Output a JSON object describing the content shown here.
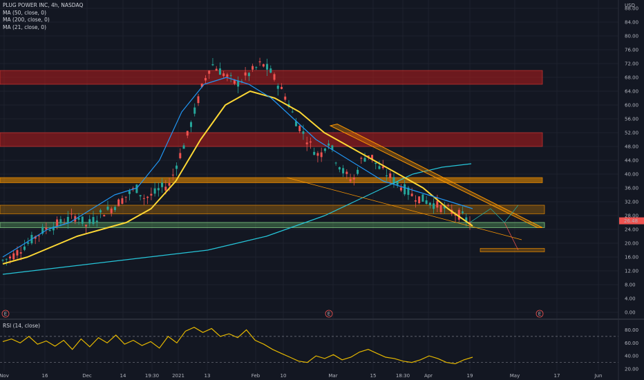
{
  "legend": {
    "symbol": "PLUG POWER INC, 4h, NASDAQ",
    "ma1": "MA (50, close, 0)",
    "ma2": "MA (200, close, 0)",
    "ma3": "MA (21, close, 0)",
    "rsi": "RSI (14, close)"
  },
  "currency": "USD",
  "last_price": "26.48",
  "earnings_marker": "E",
  "colors": {
    "background": "#131722",
    "up_candle": "#26a69a",
    "down_candle": "#ef5350",
    "ma50": "#2196f3",
    "ma200": "#26c6da",
    "ma21": "#fdd835",
    "rsi": "#e6b800",
    "resistance_zone": "#b71c1c",
    "orange_zone": "#e68a00",
    "support_zone": "#66bb6a"
  },
  "chart_data": {
    "type": "candlestick",
    "symbol": "PLUG",
    "interval": "4h",
    "exchange": "NASDAQ",
    "price_ticks": [
      "88.00",
      "84.00",
      "80.00",
      "76.00",
      "72.00",
      "68.00",
      "64.00",
      "60.00",
      "56.00",
      "52.00",
      "48.00",
      "44.00",
      "40.00",
      "36.00",
      "32.00",
      "28.00",
      "24.00",
      "20.00",
      "16.00",
      "12.00",
      "8.00",
      "4.00",
      "0.00"
    ],
    "rsi_ticks": [
      "80.00",
      "60.00",
      "40.00",
      "20.00"
    ],
    "x_tick_labels": [
      "Nov",
      "16",
      "Dec",
      "14",
      "19:30",
      "2021",
      "13",
      "Feb",
      "10",
      "Mar",
      "15",
      "18:30",
      "Apr",
      "19",
      "May",
      "17",
      "Jun"
    ],
    "approx_closes": [
      15,
      16,
      18,
      20,
      22,
      24,
      25,
      26,
      27,
      28,
      25,
      27,
      29,
      30,
      32,
      34,
      36,
      33,
      34,
      36,
      37,
      44,
      50,
      58,
      66,
      72,
      70,
      68,
      66,
      68,
      70,
      72,
      70,
      66,
      62,
      56,
      52,
      48,
      45,
      50,
      44,
      40,
      38,
      44,
      46,
      42,
      40,
      38,
      36,
      34,
      33,
      32,
      31,
      30,
      29,
      28,
      26
    ],
    "ma21_curve": [
      16,
      20,
      24,
      26,
      30,
      34,
      36,
      44,
      58,
      66,
      68,
      66,
      62,
      56,
      50,
      46,
      42,
      38,
      36,
      34,
      32,
      30
    ],
    "ma50_curve": [
      14,
      16,
      19,
      22,
      24,
      26,
      30,
      38,
      50,
      60,
      64,
      62,
      58,
      52,
      48,
      44,
      40,
      36,
      30,
      25
    ],
    "ma200_curve": [
      11,
      12,
      13,
      14,
      15,
      16,
      17,
      18,
      20,
      22,
      25,
      28,
      32,
      36,
      40,
      42,
      43
    ],
    "rsi_values": [
      62,
      66,
      60,
      70,
      58,
      63,
      55,
      64,
      50,
      66,
      54,
      68,
      60,
      72,
      58,
      64,
      56,
      62,
      52,
      70,
      60,
      78,
      84,
      76,
      82,
      70,
      74,
      68,
      80,
      64,
      58,
      50,
      44,
      38,
      32,
      30,
      40,
      36,
      42,
      34,
      38,
      46,
      50,
      44,
      38,
      36,
      32,
      30,
      34,
      40,
      36,
      30,
      28,
      34,
      38
    ],
    "resistance_zones": [
      [
        66,
        70
      ],
      [
        48,
        52
      ]
    ],
    "orange_zones": [
      [
        37.5,
        39
      ],
      [
        28.5,
        31
      ],
      [
        17.5,
        18.5
      ]
    ],
    "support_zone": [
      24.5,
      26
    ],
    "rsi_levels": [
      70,
      30
    ]
  }
}
